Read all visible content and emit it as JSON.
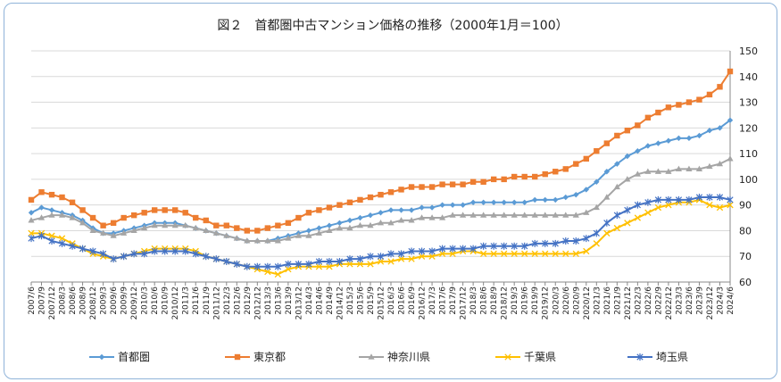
{
  "chart_data": {
    "type": "line",
    "title": "図２　首都圏中古マンション価格の推移（2000年1月＝100）",
    "ylim": [
      60,
      150
    ],
    "yticks": [
      60,
      70,
      80,
      90,
      100,
      110,
      120,
      130,
      140,
      150
    ],
    "y_axis_position": "right",
    "grid": true,
    "legend_position": "bottom",
    "x_labels": [
      "2007/6",
      "2007/9",
      "2007/12",
      "2008/3",
      "2008/6",
      "2008/9",
      "2008/12",
      "2009/3",
      "2009/6",
      "2009/9",
      "2009/12",
      "2010/3",
      "2010/6",
      "2010/9",
      "2010/12",
      "2011/3",
      "2011/6",
      "2011/9",
      "2011/12",
      "2012/3",
      "2012/6",
      "2012/9",
      "2012/12",
      "2013/3",
      "2013/6",
      "2013/9",
      "2013/12",
      "2014/3",
      "2014/6",
      "2014/9",
      "2014/12",
      "2015/3",
      "2015/6",
      "2015/9",
      "2015/12",
      "2016/3",
      "2016/6",
      "2016/9",
      "2016/12",
      "2017/3",
      "2017/6",
      "2017/9",
      "2017/12",
      "2018/3",
      "2018/6",
      "2018/9",
      "2018/12",
      "2019/3",
      "2019/6",
      "2019/9",
      "2019/12",
      "2020/3",
      "2020/6",
      "2020/9",
      "2020/12",
      "2021/3",
      "2021/6",
      "2021/9",
      "2021/12",
      "2022/3",
      "2022/6",
      "2022/9",
      "2022/12",
      "2023/3",
      "2023/6",
      "2023/9",
      "2023/12",
      "2024/3",
      "2024/6"
    ],
    "series": [
      {
        "name": "首都圏",
        "color": "#5b9bd5",
        "marker": "diamond",
        "values": [
          87,
          89,
          88,
          87,
          86,
          84,
          81,
          79,
          79,
          80,
          81,
          82,
          83,
          83,
          83,
          82,
          81,
          80,
          79,
          78,
          77,
          76,
          76,
          76,
          77,
          78,
          79,
          80,
          81,
          82,
          83,
          84,
          85,
          86,
          87,
          88,
          88,
          88,
          89,
          89,
          90,
          90,
          90,
          91,
          91,
          91,
          91,
          91,
          91,
          92,
          92,
          92,
          93,
          94,
          96,
          99,
          103,
          106,
          109,
          111,
          113,
          114,
          115,
          116,
          116,
          117,
          119,
          120,
          123
        ]
      },
      {
        "name": "東京都",
        "color": "#ed7d31",
        "marker": "square",
        "values": [
          92,
          95,
          94,
          93,
          91,
          88,
          85,
          82,
          83,
          85,
          86,
          87,
          88,
          88,
          88,
          87,
          85,
          84,
          82,
          82,
          81,
          80,
          80,
          81,
          82,
          83,
          85,
          87,
          88,
          89,
          90,
          91,
          92,
          93,
          94,
          95,
          96,
          97,
          97,
          97,
          98,
          98,
          98,
          99,
          99,
          100,
          100,
          101,
          101,
          101,
          102,
          103,
          104,
          106,
          108,
          111,
          114,
          117,
          119,
          121,
          124,
          126,
          128,
          129,
          130,
          131,
          133,
          136,
          142
        ]
      },
      {
        "name": "神奈川県",
        "color": "#a5a5a5",
        "marker": "triangle",
        "values": [
          84,
          85,
          86,
          86,
          85,
          83,
          80,
          79,
          78,
          79,
          80,
          81,
          82,
          82,
          82,
          82,
          81,
          80,
          79,
          78,
          77,
          76,
          76,
          76,
          76,
          77,
          78,
          78,
          79,
          80,
          81,
          81,
          82,
          82,
          83,
          83,
          84,
          84,
          85,
          85,
          85,
          86,
          86,
          86,
          86,
          86,
          86,
          86,
          86,
          86,
          86,
          86,
          86,
          86,
          87,
          89,
          93,
          97,
          100,
          102,
          103,
          103,
          103,
          104,
          104,
          104,
          105,
          106,
          108
        ]
      },
      {
        "name": "千葉県",
        "color": "#ffc000",
        "marker": "x",
        "values": [
          79,
          79,
          78,
          77,
          75,
          73,
          71,
          70,
          69,
          70,
          71,
          72,
          73,
          73,
          73,
          73,
          72,
          70,
          69,
          68,
          67,
          66,
          65,
          64,
          63,
          65,
          66,
          66,
          66,
          66,
          67,
          67,
          67,
          67,
          68,
          68,
          69,
          69,
          70,
          70,
          71,
          71,
          72,
          72,
          71,
          71,
          71,
          71,
          71,
          71,
          71,
          71,
          71,
          71,
          72,
          75,
          79,
          81,
          83,
          85,
          87,
          89,
          90,
          91,
          91,
          92,
          90,
          89,
          90
        ]
      },
      {
        "name": "埼玉県",
        "color": "#4472c4",
        "marker": "star",
        "values": [
          77,
          78,
          76,
          75,
          74,
          73,
          72,
          71,
          69,
          70,
          71,
          71,
          72,
          72,
          72,
          72,
          71,
          70,
          69,
          68,
          67,
          66,
          66,
          66,
          66,
          67,
          67,
          67,
          68,
          68,
          68,
          69,
          69,
          70,
          70,
          71,
          71,
          72,
          72,
          72,
          73,
          73,
          73,
          73,
          74,
          74,
          74,
          74,
          74,
          75,
          75,
          75,
          76,
          76,
          77,
          79,
          83,
          86,
          88,
          90,
          91,
          92,
          92,
          92,
          92,
          93,
          93,
          93,
          92
        ]
      }
    ]
  }
}
